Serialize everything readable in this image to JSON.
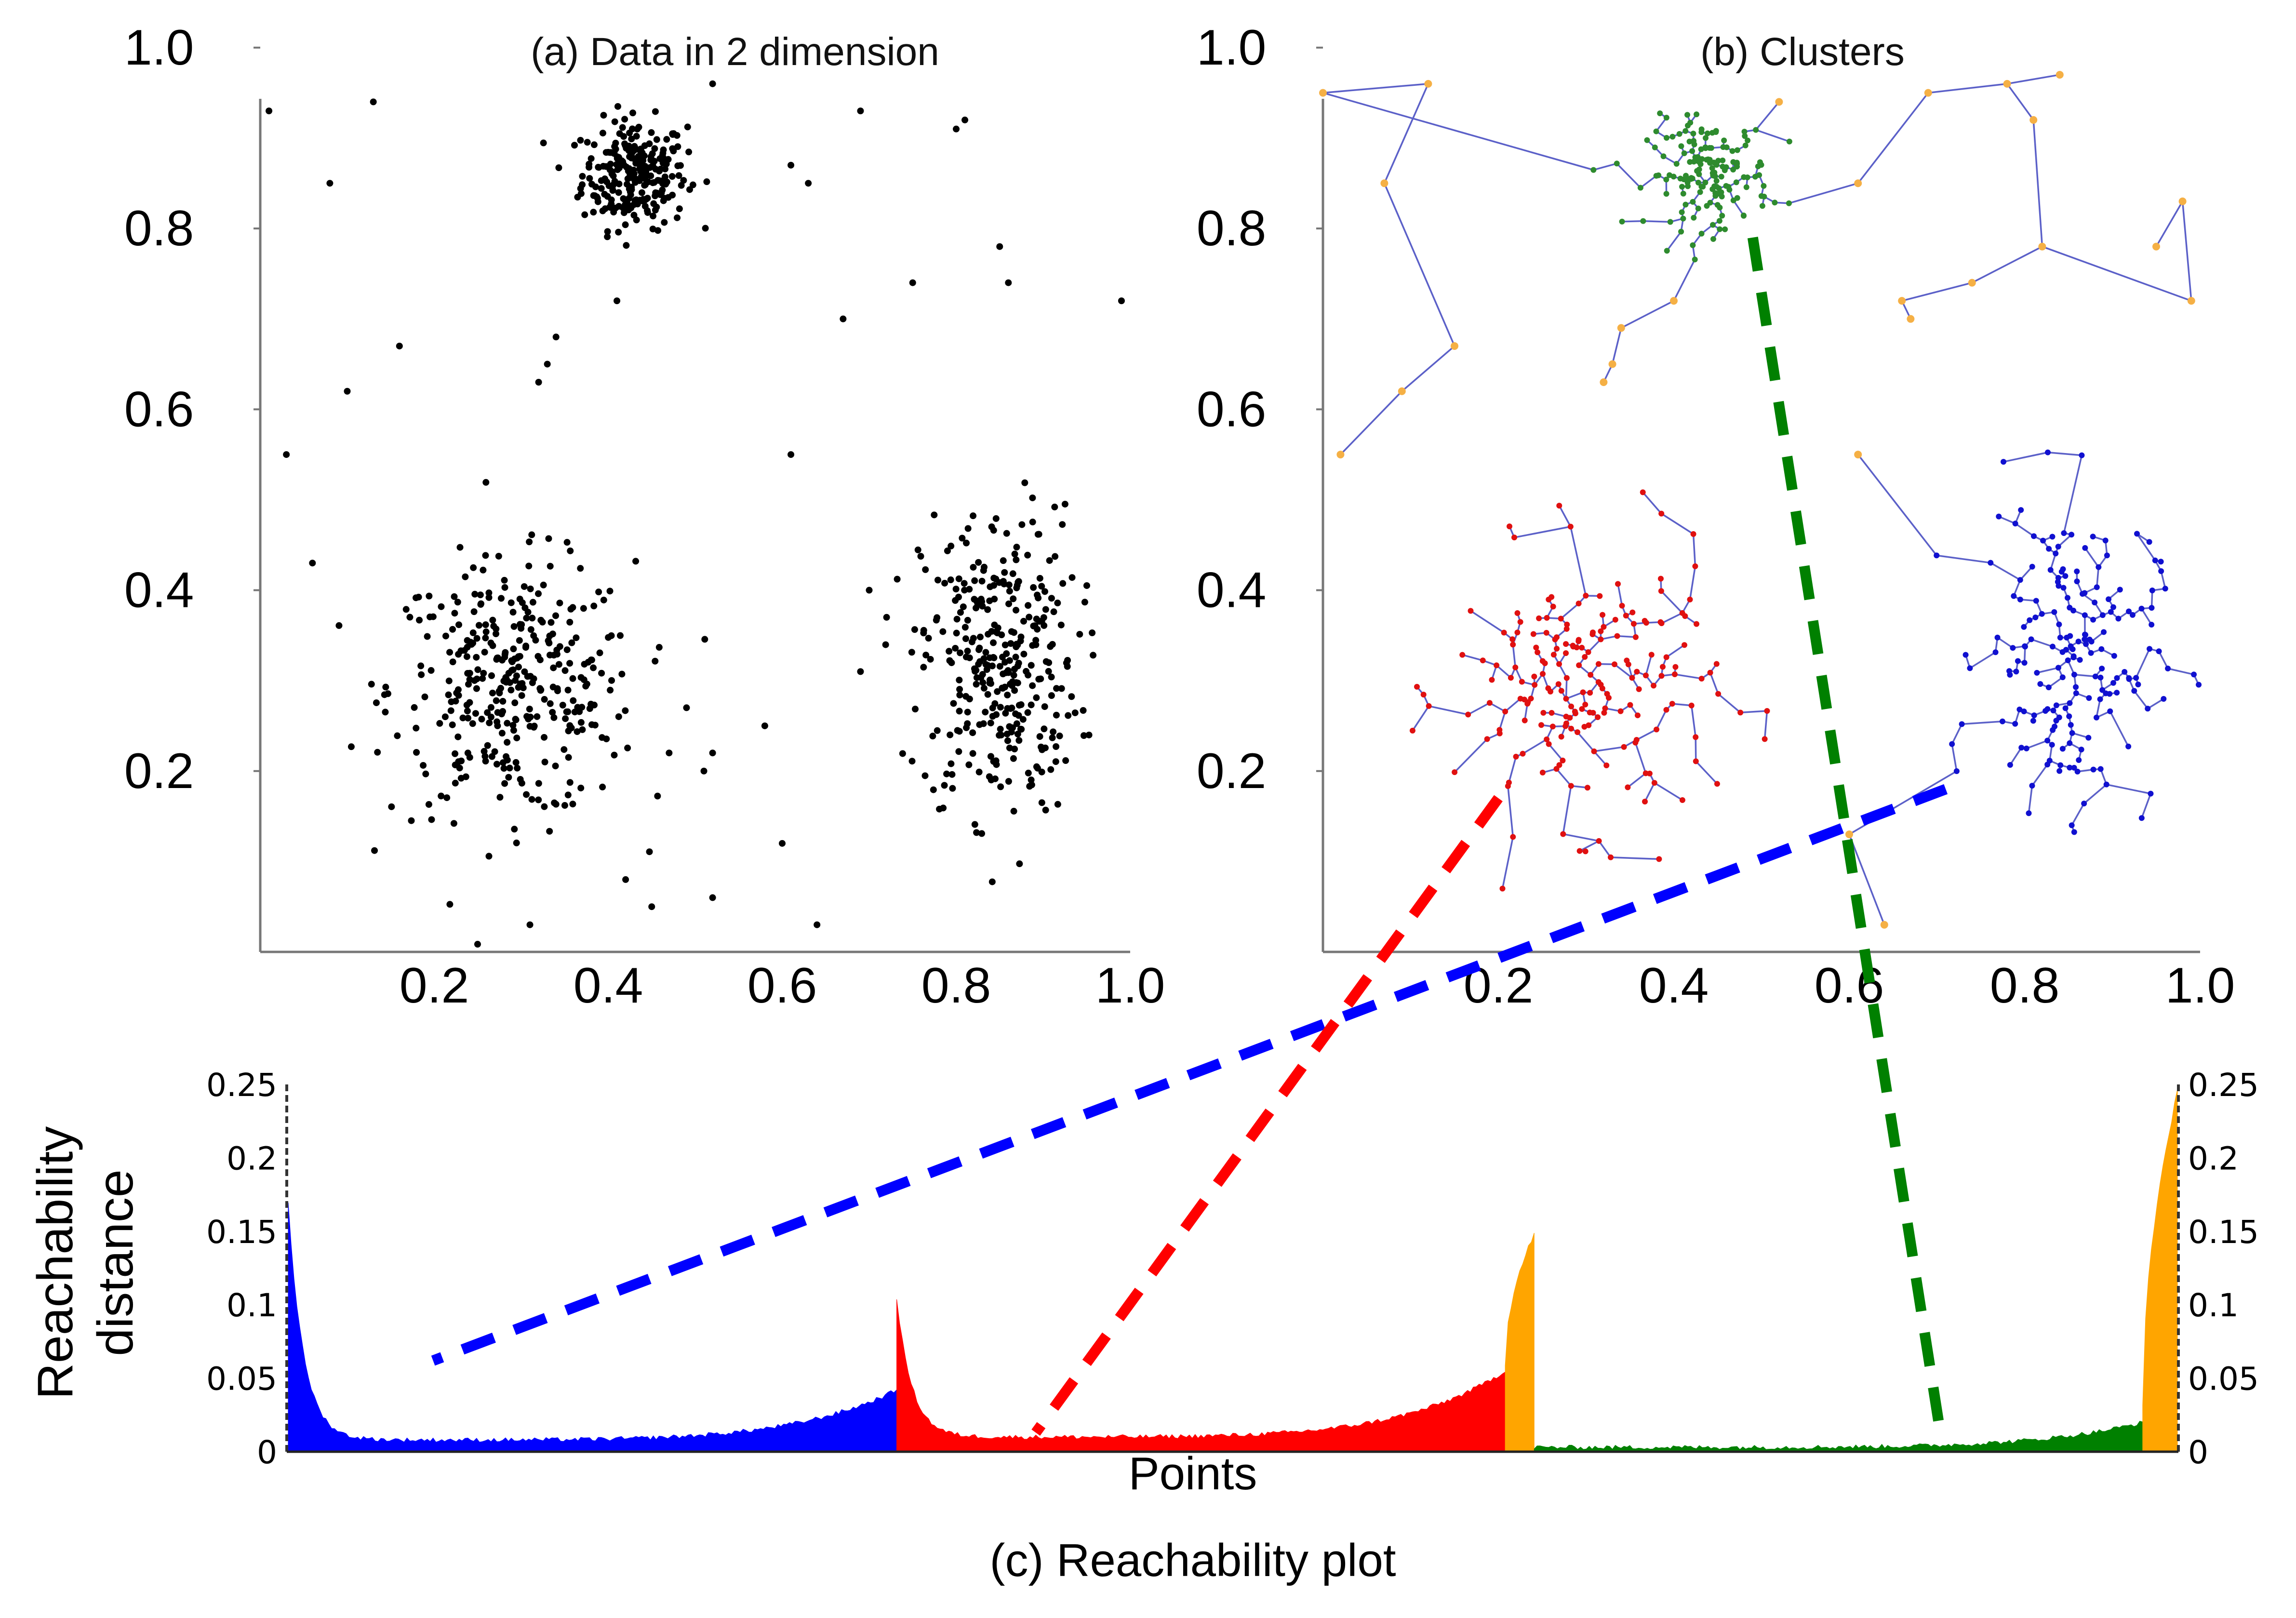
{
  "chart_data": [
    {
      "type": "scatter",
      "title": "(a) Data in 2 dimension",
      "xlim": [
        0.0,
        1.0
      ],
      "ylim": [
        0.0,
        1.0
      ],
      "x_ticks": [
        "0.2",
        "0.4",
        "0.6",
        "0.8",
        "1.0"
      ],
      "y_ticks": [
        "0.2",
        "0.4",
        "0.6",
        "0.8",
        "1.0"
      ],
      "point_color": "#000000",
      "groups": [
        {
          "center": [
            0.43,
            0.86
          ],
          "spread": [
            0.03,
            0.03
          ],
          "n": 260
        },
        {
          "center": [
            0.29,
            0.29
          ],
          "spread": [
            0.07,
            0.07
          ],
          "n": 360
        },
        {
          "center": [
            0.85,
            0.32
          ],
          "spread": [
            0.045,
            0.085
          ],
          "n": 340
        }
      ],
      "outliers": [
        [
          0.01,
          0.93
        ],
        [
          0.13,
          0.94
        ],
        [
          0.08,
          0.85
        ],
        [
          0.52,
          0.96
        ],
        [
          0.69,
          0.93
        ],
        [
          0.63,
          0.85
        ],
        [
          0.8,
          0.91
        ],
        [
          0.85,
          0.78
        ],
        [
          0.86,
          0.74
        ],
        [
          0.99,
          0.72
        ],
        [
          0.75,
          0.74
        ],
        [
          0.67,
          0.7
        ],
        [
          0.41,
          0.72
        ],
        [
          0.34,
          0.68
        ],
        [
          0.33,
          0.65
        ],
        [
          0.32,
          0.63
        ],
        [
          0.16,
          0.67
        ],
        [
          0.1,
          0.62
        ],
        [
          0.03,
          0.55
        ],
        [
          0.06,
          0.43
        ],
        [
          0.61,
          0.55
        ],
        [
          0.6,
          0.12
        ],
        [
          0.64,
          0.03
        ],
        [
          0.52,
          0.06
        ],
        [
          0.45,
          0.05
        ],
        [
          0.42,
          0.08
        ],
        [
          0.31,
          0.03
        ],
        [
          0.58,
          0.25
        ],
        [
          0.69,
          0.31
        ],
        [
          0.7,
          0.4
        ],
        [
          0.72,
          0.37
        ],
        [
          0.49,
          0.27
        ],
        [
          0.52,
          0.22
        ],
        [
          0.51,
          0.2
        ],
        [
          0.47,
          0.22
        ],
        [
          0.61,
          0.87
        ],
        [
          0.81,
          0.92
        ]
      ]
    },
    {
      "type": "scatter",
      "title": "(b) Clusters",
      "xlim": [
        0.0,
        1.0
      ],
      "ylim": [
        0.0,
        1.0
      ],
      "x_ticks": [
        "0.2",
        "0.4",
        "0.6",
        "0.8",
        "1.0"
      ],
      "y_ticks": [
        "0.2",
        "0.4",
        "0.6",
        "0.8",
        "1.0"
      ],
      "series": [
        {
          "color": "#2e8b2e",
          "center": [
            0.44,
            0.86
          ],
          "spread": [
            0.035,
            0.03
          ],
          "n": 160
        },
        {
          "color": "#e01010",
          "center": [
            0.3,
            0.29
          ],
          "spread": [
            0.075,
            0.075
          ],
          "n": 200
        },
        {
          "color": "#1010d0",
          "center": [
            0.85,
            0.33
          ],
          "spread": [
            0.05,
            0.085
          ],
          "n": 190
        }
      ],
      "noise_color": "#f5b045",
      "edge_color": "#5b60c8",
      "noise_points": [
        [
          0.0,
          0.95
        ],
        [
          0.12,
          0.96
        ],
        [
          0.07,
          0.85
        ],
        [
          0.15,
          0.67
        ],
        [
          0.52,
          0.94
        ],
        [
          0.61,
          0.85
        ],
        [
          0.69,
          0.95
        ],
        [
          0.78,
          0.96
        ],
        [
          0.84,
          0.97
        ],
        [
          0.81,
          0.92
        ],
        [
          0.82,
          0.78
        ],
        [
          0.74,
          0.74
        ],
        [
          0.66,
          0.72
        ],
        [
          0.99,
          0.72
        ],
        [
          0.98,
          0.83
        ],
        [
          0.95,
          0.78
        ],
        [
          0.67,
          0.7
        ],
        [
          0.4,
          0.72
        ],
        [
          0.34,
          0.69
        ],
        [
          0.33,
          0.65
        ],
        [
          0.32,
          0.63
        ],
        [
          0.09,
          0.62
        ],
        [
          0.02,
          0.55
        ],
        [
          0.61,
          0.55
        ],
        [
          0.6,
          0.13
        ],
        [
          0.64,
          0.03
        ]
      ]
    },
    {
      "type": "area",
      "title": "(c) Reachability plot",
      "xlabel": "Points",
      "ylabel": "Reachability distance",
      "ylim": [
        0,
        0.25
      ],
      "y_ticks": [
        "0",
        "0.05",
        "0.1",
        "0.15",
        "0.2",
        "0.25"
      ],
      "x_range": [
        0,
        1000
      ],
      "segments": [
        {
          "color": "#0000ff",
          "range": [
            0,
            210
          ],
          "start": 0.17,
          "base": 0.008,
          "end": 0.042
        },
        {
          "color": "#ff0000",
          "range": [
            210,
            420
          ],
          "start": 0.105,
          "base": 0.01,
          "end": 0.055
        },
        {
          "color": "#ffa500",
          "range": [
            420,
            430
          ],
          "start": 0.06,
          "base": 0.13,
          "end": 0.148
        },
        {
          "color": "#008000",
          "range": [
            430,
            640
          ],
          "start": 0.003,
          "base": 0.003,
          "end": 0.02
        },
        {
          "color": "#ffa500",
          "range": [
            640,
            652
          ],
          "start": 0.03,
          "base": 0.12,
          "end": 0.245
        }
      ]
    }
  ],
  "connectors": [
    {
      "color": "#0000ff"
    },
    {
      "color": "#ff0000"
    },
    {
      "color": "#008000"
    }
  ]
}
